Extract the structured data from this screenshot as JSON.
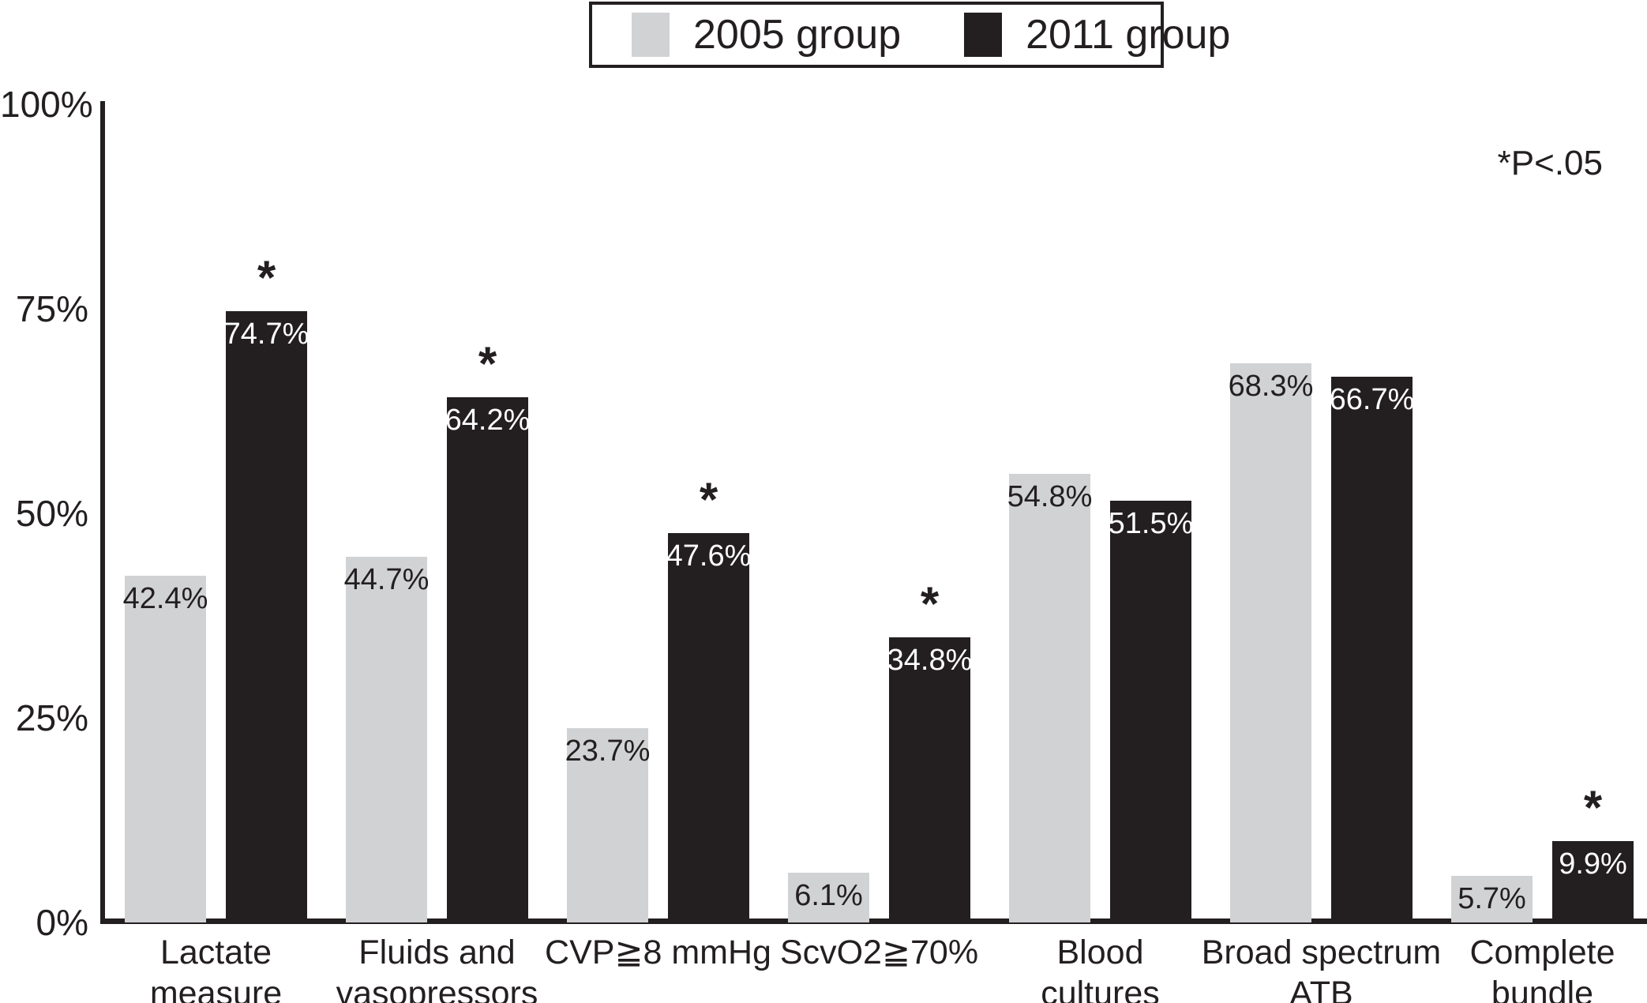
{
  "legend": {
    "items": [
      {
        "label": "2005 group",
        "color": "#d1d2d4"
      },
      {
        "label": "2011 group",
        "color": "#231f20"
      }
    ]
  },
  "annotation": {
    "text": "*P<.05"
  },
  "chart_data": {
    "type": "bar",
    "title": "",
    "xlabel": "",
    "ylabel": "",
    "categories": [
      "Lactate\nmeasure",
      "Fluids and\nvasopressors",
      "CVP≧8 mmHg",
      "ScvO2≧70%",
      "Blood\ncultures",
      "Broad spectrum\nATB",
      "Complete\nbundle"
    ],
    "series": [
      {
        "name": "2005 group",
        "color": "#d1d2d4",
        "label_color": "#231f20",
        "values": [
          42.4,
          44.7,
          23.7,
          6.1,
          54.8,
          68.3,
          5.7
        ]
      },
      {
        "name": "2011 group",
        "color": "#231f20",
        "label_color": "#ffffff",
        "values": [
          74.7,
          64.2,
          47.6,
          34.8,
          51.5,
          66.7,
          9.9
        ]
      }
    ],
    "value_suffix": "%",
    "significance": {
      "symbol": "*",
      "note": "*P<.05",
      "on_series": "2011 group",
      "flags": [
        true,
        true,
        true,
        true,
        false,
        false,
        true
      ]
    },
    "ylim": [
      0,
      100
    ],
    "ytick_labels": [
      "0%",
      "25%",
      "50%",
      "75%",
      "100%"
    ],
    "grid": false,
    "legend_position": "top-center"
  }
}
